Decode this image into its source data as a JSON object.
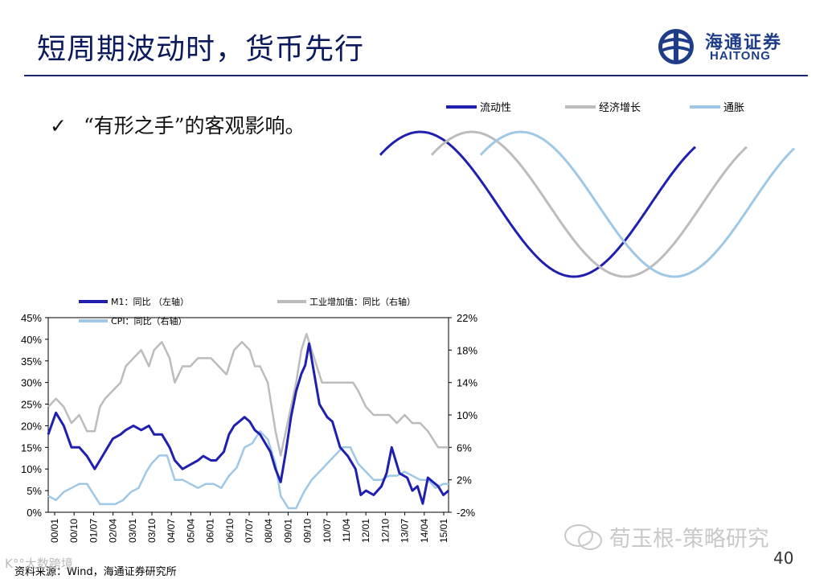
{
  "header": {
    "title": "短周期波动时，货币先行",
    "logo_cn": "海通证券",
    "logo_en": "HAITONG"
  },
  "bullet": {
    "check": "✓",
    "text": "“有形之手”的客观影响。"
  },
  "wave_legend": {
    "liquidity": "流动性",
    "growth": "经济增长",
    "inflation": "通胀"
  },
  "colors": {
    "m1": "#1f1fb0",
    "ip": "#bcbcbc",
    "cpi": "#9ec8e6",
    "title": "#0a1a5c"
  },
  "chart_data": {
    "type": "line",
    "legend": [
      "M1：同比 （左轴）",
      "工业增加值：同比（右轴）",
      "CPI：同比（右轴）"
    ],
    "y_left": {
      "ticks": [
        "45%",
        "40%",
        "35%",
        "30%",
        "25%",
        "20%",
        "15%",
        "10%",
        "5%",
        "0%"
      ],
      "range": [
        0,
        45
      ]
    },
    "y_right": {
      "ticks": [
        "22%",
        "18%",
        "14%",
        "10%",
        "6%",
        "2%",
        "-2%"
      ],
      "range": [
        -2,
        22
      ]
    },
    "x_range": [
      2000.0,
      2015.5
    ],
    "x_ticks": [
      "00/01",
      "00/10",
      "01/07",
      "02/04",
      "03/01",
      "03/10",
      "04/07",
      "05/04",
      "06/01",
      "06/10",
      "07/07",
      "08/04",
      "09/01",
      "09/10",
      "10/07",
      "11/04",
      "12/01",
      "12/10",
      "13/07",
      "14/04",
      "15/01"
    ],
    "series": [
      {
        "name": "M1",
        "axis": "left",
        "x": [
          2000.0,
          2000.3,
          2000.6,
          2000.9,
          2001.2,
          2001.5,
          2001.8,
          2002.0,
          2002.3,
          2002.5,
          2002.8,
          2003.0,
          2003.3,
          2003.6,
          2003.9,
          2004.1,
          2004.4,
          2004.7,
          2004.9,
          2005.2,
          2005.5,
          2005.8,
          2006.0,
          2006.3,
          2006.5,
          2006.8,
          2007.0,
          2007.2,
          2007.4,
          2007.6,
          2007.8,
          2008.0,
          2008.2,
          2008.4,
          2008.6,
          2008.8,
          2009.0,
          2009.2,
          2009.4,
          2009.6,
          2009.8,
          2009.95,
          2010.1,
          2010.3,
          2010.5,
          2010.8,
          2011.0,
          2011.3,
          2011.6,
          2011.9,
          2012.1,
          2012.3,
          2012.6,
          2012.9,
          2013.1,
          2013.3,
          2013.6,
          2013.9,
          2014.1,
          2014.3,
          2014.5,
          2014.7,
          2014.9,
          2015.1,
          2015.3,
          2015.5
        ],
        "values": [
          18,
          23,
          20,
          15,
          15,
          13,
          10,
          12,
          15,
          17,
          18,
          19,
          20,
          19,
          20,
          18,
          18,
          15,
          12,
          10,
          11,
          12,
          13,
          12,
          12,
          14,
          18,
          20,
          21,
          22,
          21,
          19,
          18,
          16,
          14,
          10,
          7,
          14,
          22,
          28,
          32,
          34,
          39,
          32,
          25,
          22,
          21,
          15,
          13,
          10,
          4,
          5,
          4,
          6,
          9,
          15,
          9,
          8,
          5,
          6,
          2,
          8,
          7,
          6,
          4,
          5
        ]
      },
      {
        "name": "工业增加值",
        "axis": "right",
        "x": [
          2000.0,
          2000.3,
          2000.6,
          2000.9,
          2001.2,
          2001.5,
          2001.8,
          2002.0,
          2002.2,
          2002.5,
          2002.8,
          2003.0,
          2003.3,
          2003.6,
          2003.9,
          2004.1,
          2004.4,
          2004.7,
          2004.9,
          2005.2,
          2005.5,
          2005.8,
          2006.0,
          2006.3,
          2006.6,
          2006.9,
          2007.2,
          2007.5,
          2007.8,
          2008.0,
          2008.2,
          2008.5,
          2008.8,
          2009.0,
          2009.2,
          2009.4,
          2009.6,
          2009.8,
          2010.0,
          2010.3,
          2010.6,
          2010.9,
          2011.2,
          2011.5,
          2011.8,
          2012.0,
          2012.3,
          2012.6,
          2012.9,
          2013.2,
          2013.5,
          2013.8,
          2014.1,
          2014.4,
          2014.7,
          2014.9,
          2015.1,
          2015.3,
          2015.5
        ],
        "values": [
          11,
          12,
          11,
          9,
          10,
          8,
          8,
          11,
          12,
          13,
          14,
          16,
          17,
          18,
          16,
          18,
          19,
          17,
          14,
          16,
          16,
          17,
          17,
          17,
          16,
          15,
          18,
          19,
          18,
          16,
          16,
          14,
          8,
          5,
          8,
          11,
          14,
          18,
          20,
          17,
          14,
          14,
          14,
          14,
          14,
          13,
          11,
          10,
          10,
          10,
          9,
          10,
          9,
          9,
          8,
          7,
          6,
          6,
          6
        ]
      },
      {
        "name": "CPI",
        "axis": "right",
        "x": [
          2000.0,
          2000.3,
          2000.6,
          2000.9,
          2001.2,
          2001.5,
          2001.8,
          2002.0,
          2002.3,
          2002.6,
          2002.9,
          2003.2,
          2003.5,
          2003.8,
          2004.0,
          2004.3,
          2004.6,
          2004.9,
          2005.2,
          2005.5,
          2005.8,
          2006.1,
          2006.4,
          2006.7,
          2007.0,
          2007.3,
          2007.6,
          2007.9,
          2008.2,
          2008.5,
          2008.8,
          2009.0,
          2009.3,
          2009.6,
          2009.9,
          2010.2,
          2010.5,
          2010.8,
          2011.1,
          2011.4,
          2011.7,
          2012.0,
          2012.3,
          2012.6,
          2012.9,
          2013.2,
          2013.5,
          2013.8,
          2014.1,
          2014.4,
          2014.7,
          2015.0,
          2015.3,
          2015.5
        ],
        "values": [
          0,
          -0.5,
          0.5,
          1,
          1.5,
          1.5,
          0,
          -1,
          -1,
          -1,
          -0.5,
          0.5,
          1,
          3,
          4,
          5,
          5,
          2,
          2,
          1.5,
          1,
          1.5,
          1.5,
          1,
          2.5,
          3.5,
          6,
          6.5,
          8,
          7,
          4,
          0,
          -1.5,
          -1.5,
          0.5,
          2,
          3,
          4,
          5,
          6,
          6,
          4,
          3,
          2,
          2,
          2.5,
          2.5,
          3,
          2.5,
          2,
          2,
          1,
          1.5,
          1.5
        ]
      }
    ]
  },
  "source": "资料来源：Wind，海通证券研究所",
  "watermark": "荀玉根-策略研究",
  "corner_mark": "K°°大数跨境",
  "page_number": "40"
}
